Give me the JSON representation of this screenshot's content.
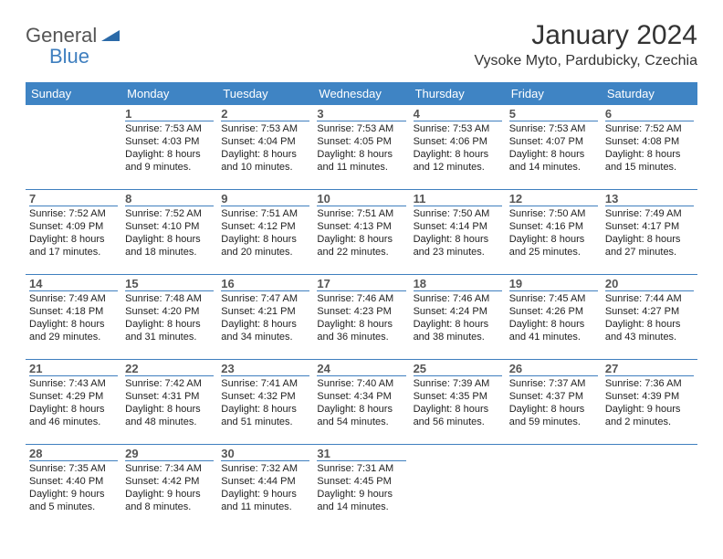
{
  "logo": {
    "word1": "General",
    "word2": "Blue"
  },
  "title": "January 2024",
  "location": "Vysoke Myto, Pardubicky, Czechia",
  "dayheads": [
    "Sunday",
    "Monday",
    "Tuesday",
    "Wednesday",
    "Thursday",
    "Friday",
    "Saturday"
  ],
  "colors": {
    "header_bg": "#3f84c4",
    "rule": "#3f7fbf",
    "text": "#222222",
    "daynum": "#555555"
  },
  "weeks": [
    [
      {
        "num": "",
        "lines": []
      },
      {
        "num": "1",
        "lines": [
          "Sunrise: 7:53 AM",
          "Sunset: 4:03 PM",
          "Daylight: 8 hours",
          "and 9 minutes."
        ]
      },
      {
        "num": "2",
        "lines": [
          "Sunrise: 7:53 AM",
          "Sunset: 4:04 PM",
          "Daylight: 8 hours",
          "and 10 minutes."
        ]
      },
      {
        "num": "3",
        "lines": [
          "Sunrise: 7:53 AM",
          "Sunset: 4:05 PM",
          "Daylight: 8 hours",
          "and 11 minutes."
        ]
      },
      {
        "num": "4",
        "lines": [
          "Sunrise: 7:53 AM",
          "Sunset: 4:06 PM",
          "Daylight: 8 hours",
          "and 12 minutes."
        ]
      },
      {
        "num": "5",
        "lines": [
          "Sunrise: 7:53 AM",
          "Sunset: 4:07 PM",
          "Daylight: 8 hours",
          "and 14 minutes."
        ]
      },
      {
        "num": "6",
        "lines": [
          "Sunrise: 7:52 AM",
          "Sunset: 4:08 PM",
          "Daylight: 8 hours",
          "and 15 minutes."
        ]
      }
    ],
    [
      {
        "num": "7",
        "lines": [
          "Sunrise: 7:52 AM",
          "Sunset: 4:09 PM",
          "Daylight: 8 hours",
          "and 17 minutes."
        ]
      },
      {
        "num": "8",
        "lines": [
          "Sunrise: 7:52 AM",
          "Sunset: 4:10 PM",
          "Daylight: 8 hours",
          "and 18 minutes."
        ]
      },
      {
        "num": "9",
        "lines": [
          "Sunrise: 7:51 AM",
          "Sunset: 4:12 PM",
          "Daylight: 8 hours",
          "and 20 minutes."
        ]
      },
      {
        "num": "10",
        "lines": [
          "Sunrise: 7:51 AM",
          "Sunset: 4:13 PM",
          "Daylight: 8 hours",
          "and 22 minutes."
        ]
      },
      {
        "num": "11",
        "lines": [
          "Sunrise: 7:50 AM",
          "Sunset: 4:14 PM",
          "Daylight: 8 hours",
          "and 23 minutes."
        ]
      },
      {
        "num": "12",
        "lines": [
          "Sunrise: 7:50 AM",
          "Sunset: 4:16 PM",
          "Daylight: 8 hours",
          "and 25 minutes."
        ]
      },
      {
        "num": "13",
        "lines": [
          "Sunrise: 7:49 AM",
          "Sunset: 4:17 PM",
          "Daylight: 8 hours",
          "and 27 minutes."
        ]
      }
    ],
    [
      {
        "num": "14",
        "lines": [
          "Sunrise: 7:49 AM",
          "Sunset: 4:18 PM",
          "Daylight: 8 hours",
          "and 29 minutes."
        ]
      },
      {
        "num": "15",
        "lines": [
          "Sunrise: 7:48 AM",
          "Sunset: 4:20 PM",
          "Daylight: 8 hours",
          "and 31 minutes."
        ]
      },
      {
        "num": "16",
        "lines": [
          "Sunrise: 7:47 AM",
          "Sunset: 4:21 PM",
          "Daylight: 8 hours",
          "and 34 minutes."
        ]
      },
      {
        "num": "17",
        "lines": [
          "Sunrise: 7:46 AM",
          "Sunset: 4:23 PM",
          "Daylight: 8 hours",
          "and 36 minutes."
        ]
      },
      {
        "num": "18",
        "lines": [
          "Sunrise: 7:46 AM",
          "Sunset: 4:24 PM",
          "Daylight: 8 hours",
          "and 38 minutes."
        ]
      },
      {
        "num": "19",
        "lines": [
          "Sunrise: 7:45 AM",
          "Sunset: 4:26 PM",
          "Daylight: 8 hours",
          "and 41 minutes."
        ]
      },
      {
        "num": "20",
        "lines": [
          "Sunrise: 7:44 AM",
          "Sunset: 4:27 PM",
          "Daylight: 8 hours",
          "and 43 minutes."
        ]
      }
    ],
    [
      {
        "num": "21",
        "lines": [
          "Sunrise: 7:43 AM",
          "Sunset: 4:29 PM",
          "Daylight: 8 hours",
          "and 46 minutes."
        ]
      },
      {
        "num": "22",
        "lines": [
          "Sunrise: 7:42 AM",
          "Sunset: 4:31 PM",
          "Daylight: 8 hours",
          "and 48 minutes."
        ]
      },
      {
        "num": "23",
        "lines": [
          "Sunrise: 7:41 AM",
          "Sunset: 4:32 PM",
          "Daylight: 8 hours",
          "and 51 minutes."
        ]
      },
      {
        "num": "24",
        "lines": [
          "Sunrise: 7:40 AM",
          "Sunset: 4:34 PM",
          "Daylight: 8 hours",
          "and 54 minutes."
        ]
      },
      {
        "num": "25",
        "lines": [
          "Sunrise: 7:39 AM",
          "Sunset: 4:35 PM",
          "Daylight: 8 hours",
          "and 56 minutes."
        ]
      },
      {
        "num": "26",
        "lines": [
          "Sunrise: 7:37 AM",
          "Sunset: 4:37 PM",
          "Daylight: 8 hours",
          "and 59 minutes."
        ]
      },
      {
        "num": "27",
        "lines": [
          "Sunrise: 7:36 AM",
          "Sunset: 4:39 PM",
          "Daylight: 9 hours",
          "and 2 minutes."
        ]
      }
    ],
    [
      {
        "num": "28",
        "lines": [
          "Sunrise: 7:35 AM",
          "Sunset: 4:40 PM",
          "Daylight: 9 hours",
          "and 5 minutes."
        ]
      },
      {
        "num": "29",
        "lines": [
          "Sunrise: 7:34 AM",
          "Sunset: 4:42 PM",
          "Daylight: 9 hours",
          "and 8 minutes."
        ]
      },
      {
        "num": "30",
        "lines": [
          "Sunrise: 7:32 AM",
          "Sunset: 4:44 PM",
          "Daylight: 9 hours",
          "and 11 minutes."
        ]
      },
      {
        "num": "31",
        "lines": [
          "Sunrise: 7:31 AM",
          "Sunset: 4:45 PM",
          "Daylight: 9 hours",
          "and 14 minutes."
        ]
      },
      {
        "num": "",
        "lines": []
      },
      {
        "num": "",
        "lines": []
      },
      {
        "num": "",
        "lines": []
      }
    ]
  ]
}
